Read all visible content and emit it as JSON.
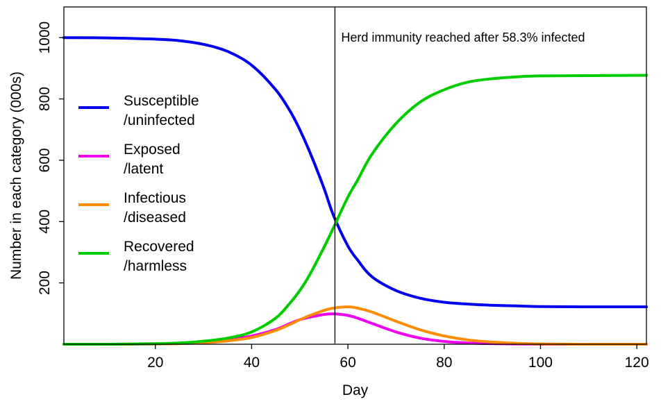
{
  "chart_data": {
    "type": "line",
    "title": "",
    "xlabel": "Day",
    "ylabel": "Number in each category (000s)",
    "xlim": [
      1,
      122
    ],
    "ylim": [
      0,
      1100
    ],
    "x_ticks": [
      20,
      40,
      60,
      80,
      100,
      120
    ],
    "y_ticks": [
      200,
      400,
      600,
      800,
      1000
    ],
    "x_tick_labels": [
      "20",
      "40",
      "60",
      "80",
      "100",
      "120"
    ],
    "y_tick_labels": [
      "200",
      "400",
      "600",
      "800",
      "1000"
    ],
    "grid": false,
    "legend_position": "left",
    "x": [
      1,
      10,
      20,
      25,
      30,
      35,
      40,
      45,
      48,
      50,
      52,
      55,
      57,
      60,
      62,
      65,
      70,
      75,
      80,
      85,
      90,
      95,
      100,
      110,
      122
    ],
    "series": [
      {
        "name": "Susceptible /uninfected",
        "label_lines": [
          "Susceptible",
          "/uninfected"
        ],
        "color": "#0000ee",
        "values": [
          1000,
          999,
          995,
          990,
          978,
          955,
          910,
          830,
          760,
          700,
          630,
          510,
          420,
          320,
          275,
          220,
          175,
          150,
          137,
          131,
          127,
          125,
          123,
          122,
          122
        ]
      },
      {
        "name": "Exposed /latent",
        "label_lines": [
          "Exposed",
          "/latent"
        ],
        "color": "#ee00ee",
        "values": [
          0,
          0,
          1,
          3,
          7,
          14,
          27,
          48,
          68,
          80,
          88,
          97,
          99,
          94,
          85,
          68,
          40,
          20,
          9,
          4,
          2,
          1,
          0,
          0,
          0
        ]
      },
      {
        "name": "Infectious /diseased",
        "label_lines": [
          "Infectious",
          "/diseased"
        ],
        "color": "#ff8c00",
        "values": [
          0,
          0,
          1,
          2,
          5,
          11,
          22,
          45,
          65,
          80,
          93,
          110,
          118,
          122,
          118,
          105,
          75,
          47,
          27,
          14,
          7,
          3,
          1,
          0,
          0
        ]
      },
      {
        "name": "Recovered /harmless",
        "label_lines": [
          "Recovered",
          "/harmless"
        ],
        "color": "#00cc00",
        "values": [
          0,
          0,
          2,
          4,
          10,
          20,
          40,
          85,
          135,
          175,
          225,
          315,
          380,
          480,
          535,
          620,
          720,
          790,
          830,
          855,
          866,
          872,
          875,
          876,
          877
        ]
      }
    ],
    "annotations": [
      {
        "type": "vline",
        "x": 57.3,
        "text": "Herd immunity reached after 58.3% infected",
        "color": "#000000"
      }
    ]
  }
}
